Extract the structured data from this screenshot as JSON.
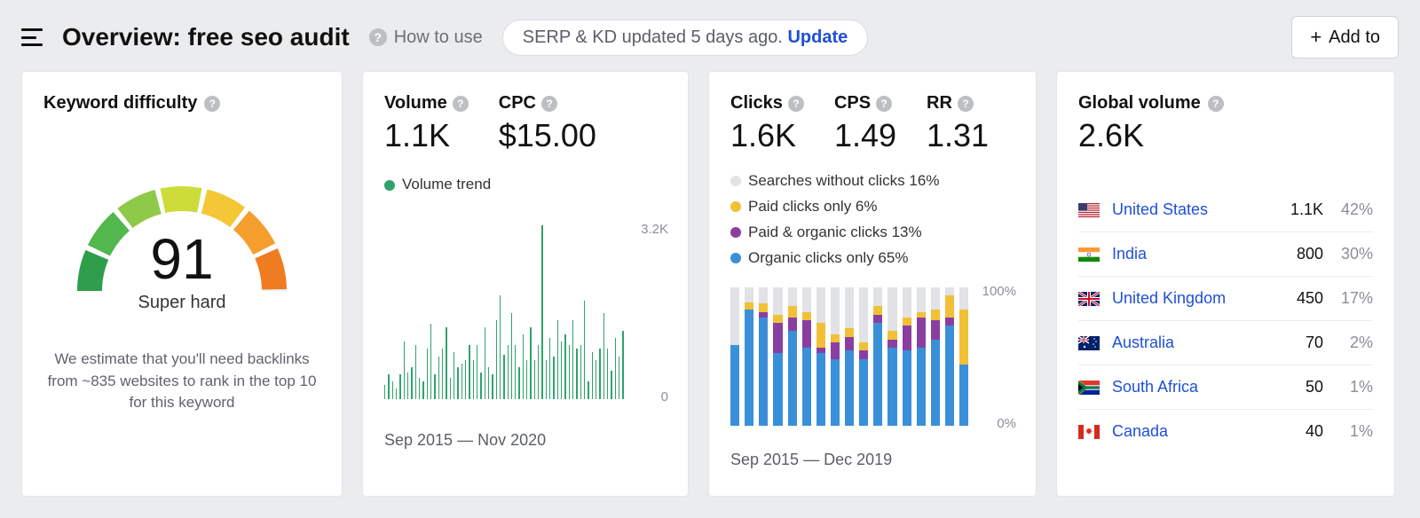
{
  "header": {
    "title": "Overview: free seo audit",
    "how_to_use": "How to use",
    "pill_text": "SERP & KD updated 5 days ago. ",
    "pill_update": "Update",
    "add_to": "Add to"
  },
  "kd": {
    "title": "Keyword difficulty",
    "score": "91",
    "rating": "Super hard",
    "description": "We estimate that you'll need backlinks from ~835 websites to rank in the top 10 for this keyword",
    "gauge": {
      "segments": [
        {
          "start": 180,
          "end": 203,
          "color": "#2e9e4a"
        },
        {
          "start": 206,
          "end": 229,
          "color": "#52b74c"
        },
        {
          "start": 232,
          "end": 255,
          "color": "#8fc94a"
        },
        {
          "start": 258,
          "end": 281,
          "color": "#cddc39"
        },
        {
          "start": 284,
          "end": 307,
          "color": "#f3c735"
        },
        {
          "start": 310,
          "end": 333,
          "color": "#f59e2e"
        },
        {
          "start": 336,
          "end": 359,
          "color": "#f07c22"
        }
      ],
      "needle_percent": 91,
      "track_color": "#e9eaec",
      "stroke_width": 28
    }
  },
  "volume": {
    "labels": {
      "volume": "Volume",
      "cpc": "CPC"
    },
    "volume_value": "1.1K",
    "cpc_value": "$15.00",
    "legend": "Volume trend",
    "legend_color": "#2fa36b",
    "axis_top": "3.2K",
    "axis_bottom": "0",
    "date_range": "Sep 2015 — Nov 2020",
    "bars": [
      8,
      14,
      10,
      6,
      14,
      32,
      15,
      18,
      30,
      12,
      10,
      28,
      42,
      14,
      24,
      28,
      40,
      12,
      26,
      18,
      20,
      22,
      30,
      22,
      30,
      15,
      40,
      18,
      14,
      44,
      58,
      25,
      30,
      48,
      30,
      18,
      36,
      22,
      40,
      22,
      30,
      97,
      22,
      34,
      24,
      44,
      32,
      36,
      30,
      44,
      28,
      30,
      55,
      10,
      26,
      22,
      28,
      48,
      28,
      16,
      34,
      24,
      38
    ],
    "bar_color": "#2fa36b"
  },
  "clicks": {
    "labels": {
      "clicks": "Clicks",
      "cps": "CPS",
      "rr": "RR"
    },
    "clicks_value": "1.6K",
    "cps_value": "1.49",
    "rr_value": "1.31",
    "legend": [
      {
        "color": "#e0e2e5",
        "label": "Searches without clicks 16%"
      },
      {
        "color": "#f2c037",
        "label": "Paid clicks only 6%"
      },
      {
        "color": "#8a3fa0",
        "label": "Paid & organic clicks 13%"
      },
      {
        "color": "#3a8fd9",
        "label": "Organic clicks only 65%"
      }
    ],
    "axis_top": "100%",
    "axis_bottom": "0%",
    "date_range": "Sep 2015 — Dec 2019",
    "columns": [
      {
        "organic": 58,
        "both": 0,
        "paid": 0,
        "none": 42
      },
      {
        "organic": 84,
        "both": 0,
        "paid": 5,
        "none": 11
      },
      {
        "organic": 78,
        "both": 4,
        "paid": 6,
        "none": 12
      },
      {
        "organic": 52,
        "both": 22,
        "paid": 6,
        "none": 20
      },
      {
        "organic": 68,
        "both": 10,
        "paid": 8,
        "none": 14
      },
      {
        "organic": 56,
        "both": 20,
        "paid": 6,
        "none": 18
      },
      {
        "organic": 52,
        "both": 4,
        "paid": 18,
        "none": 26
      },
      {
        "organic": 48,
        "both": 12,
        "paid": 6,
        "none": 34
      },
      {
        "organic": 54,
        "both": 10,
        "paid": 6,
        "none": 30
      },
      {
        "organic": 48,
        "both": 6,
        "paid": 6,
        "none": 40
      },
      {
        "organic": 74,
        "both": 6,
        "paid": 6,
        "none": 14
      },
      {
        "organic": 56,
        "both": 6,
        "paid": 6,
        "none": 32
      },
      {
        "organic": 54,
        "both": 18,
        "paid": 6,
        "none": 22
      },
      {
        "organic": 56,
        "both": 22,
        "paid": 4,
        "none": 18
      },
      {
        "organic": 62,
        "both": 14,
        "paid": 8,
        "none": 16
      },
      {
        "organic": 72,
        "both": 6,
        "paid": 16,
        "none": 6
      },
      {
        "organic": 44,
        "both": 0,
        "paid": 40,
        "none": 16
      }
    ],
    "colors": {
      "organic": "#3a8fd9",
      "both": "#8a3fa0",
      "paid": "#f2c037",
      "none": "#e0e2e5"
    }
  },
  "global": {
    "title": "Global volume",
    "value": "2.6K",
    "rows": [
      {
        "flag": "us",
        "country": "United States",
        "volume": "1.1K",
        "pct": "42%"
      },
      {
        "flag": "in",
        "country": "India",
        "volume": "800",
        "pct": "30%"
      },
      {
        "flag": "gb",
        "country": "United Kingdom",
        "volume": "450",
        "pct": "17%"
      },
      {
        "flag": "au",
        "country": "Australia",
        "volume": "70",
        "pct": "2%"
      },
      {
        "flag": "za",
        "country": "South Africa",
        "volume": "50",
        "pct": "1%"
      },
      {
        "flag": "ca",
        "country": "Canada",
        "volume": "40",
        "pct": "1%"
      }
    ]
  }
}
